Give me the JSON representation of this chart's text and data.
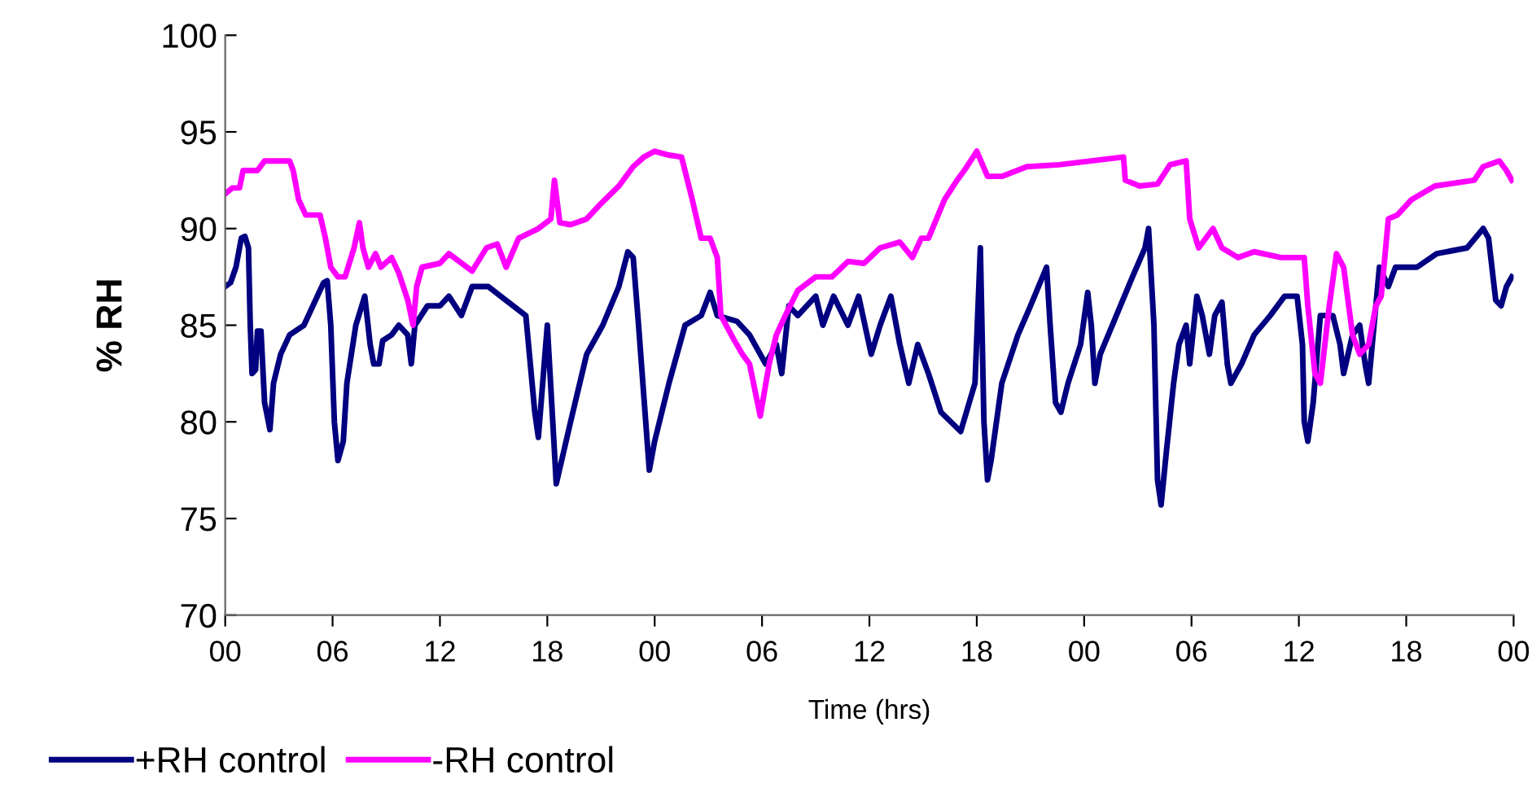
{
  "chart_data": {
    "type": "line",
    "xlabel": "Time (hrs)",
    "ylabel": "% RH",
    "xlim": [
      0,
      72
    ],
    "ylim": [
      70,
      100
    ],
    "xticks": [
      {
        "value": 0,
        "label": "00"
      },
      {
        "value": 6,
        "label": "06"
      },
      {
        "value": 12,
        "label": "12"
      },
      {
        "value": 18,
        "label": "18"
      },
      {
        "value": 24,
        "label": "00"
      },
      {
        "value": 30,
        "label": "06"
      },
      {
        "value": 36,
        "label": "12"
      },
      {
        "value": 42,
        "label": "18"
      },
      {
        "value": 48,
        "label": "00"
      },
      {
        "value": 54,
        "label": "06"
      },
      {
        "value": 60,
        "label": "12"
      },
      {
        "value": 66,
        "label": "18"
      },
      {
        "value": 72,
        "label": "00"
      }
    ],
    "yticks": [
      70,
      75,
      80,
      85,
      90,
      95,
      100
    ],
    "grid": false,
    "legend": "bottom",
    "marker": "none",
    "line_style": "solid",
    "series": [
      {
        "name": "+RH control",
        "color": "#000080",
        "x": [
          0,
          0.3,
          0.6,
          0.9,
          1.1,
          1.3,
          1.4,
          1.5,
          1.7,
          1.8,
          2.0,
          2.2,
          2.5,
          2.7,
          3.1,
          3.6,
          4.4,
          4.9,
          5.5,
          5.7,
          5.9,
          6.1,
          6.3,
          6.6,
          6.8,
          7.3,
          7.8,
          8.1,
          8.3,
          8.6,
          8.8,
          9.3,
          9.7,
          10.2,
          10.4,
          10.6,
          11.3,
          12,
          12.5,
          13.2,
          13.8,
          14.7,
          15.4,
          16.8,
          17.3,
          17.5,
          18.0,
          18.5,
          19.3,
          20.2,
          21.1,
          22,
          22.5,
          22.8,
          23.1,
          23.5,
          23.7,
          24.0,
          24.8,
          25.7,
          26.6,
          27.1,
          27.5,
          28.6,
          29.3,
          30.2,
          30.8,
          31.1,
          31.5,
          32,
          33,
          33.4,
          34,
          34.8,
          35.4,
          36.1,
          36.6,
          37.2,
          37.7,
          38.2,
          38.7,
          39.3,
          40.0,
          41.1,
          41.9,
          42.2,
          42.4,
          42.6,
          42.8,
          43.4,
          44.3,
          45.0,
          45.9,
          46.1,
          46.4,
          46.7,
          47.1,
          47.8,
          48.2,
          48.4,
          48.6,
          48.9,
          49.8,
          50.7,
          51.4,
          51.6,
          51.9,
          52.1,
          52.3,
          52.6,
          53,
          53.3,
          53.7,
          53.9,
          54.3,
          54.6,
          55,
          55.3,
          55.7,
          56,
          56.2,
          56.8,
          57.5,
          58.4,
          59.2,
          59.9,
          60.2,
          60.3,
          60.5,
          60.8,
          61.2,
          61.9,
          62.3,
          62.5,
          63,
          63.4,
          63.7,
          63.9,
          64.2,
          64.5,
          65,
          65.4,
          66.6,
          67.7,
          69.4,
          70.3,
          70.6,
          71,
          71.3,
          71.6,
          71.9
        ],
        "values": [
          87,
          87.2,
          88,
          89.5,
          89.6,
          89,
          85,
          82.5,
          82.7,
          84.7,
          84.7,
          81,
          79.6,
          82,
          83.5,
          84.5,
          85,
          86,
          87.2,
          87.3,
          85,
          80,
          78,
          79,
          82,
          85,
          86.5,
          84,
          83,
          83,
          84.2,
          84.5,
          85,
          84.5,
          83,
          85,
          86,
          86,
          86.5,
          85.5,
          87,
          87,
          86.5,
          85.5,
          80.5,
          79.2,
          85,
          76.8,
          80,
          83.5,
          85,
          87,
          88.8,
          88.5,
          85,
          80,
          77.5,
          79,
          82,
          85,
          85.5,
          86.7,
          85.5,
          85.2,
          84.5,
          83,
          84,
          82.5,
          86,
          85.5,
          86.5,
          85,
          86.5,
          85,
          86.5,
          83.5,
          85,
          86.5,
          84,
          82,
          84,
          82.5,
          80.5,
          79.5,
          82,
          89,
          80,
          77,
          78,
          82,
          84.5,
          86,
          88,
          85,
          81,
          80.5,
          82,
          84,
          86.7,
          85,
          82,
          83.5,
          85.5,
          87.5,
          89,
          90,
          85,
          77,
          75.7,
          78.5,
          82,
          84,
          85,
          83,
          86.5,
          85.5,
          83.5,
          85.5,
          86.2,
          83,
          82,
          83,
          84.5,
          85.5,
          86.5,
          86.5,
          84,
          80,
          79,
          81,
          85.5,
          85.5,
          84,
          82.5,
          84.5,
          85,
          83,
          82,
          85,
          88,
          87,
          88,
          88,
          88.7,
          89,
          90,
          89.5,
          86.3,
          86,
          87,
          87.5
        ]
      },
      {
        "name": "-RH control",
        "color": "#ff00ff",
        "x": [
          0,
          0.4,
          0.8,
          1.0,
          1.8,
          2.2,
          3.6,
          3.8,
          4.1,
          4.5,
          5.3,
          5.6,
          5.9,
          6.3,
          6.7,
          7.2,
          7.5,
          7.7,
          8.0,
          8.4,
          8.7,
          9.3,
          9.7,
          10.2,
          10.5,
          10.7,
          11,
          12,
          12.5,
          13.8,
          14.6,
          15.2,
          15.7,
          16.4,
          17.5,
          18.2,
          18.4,
          18.7,
          19.3,
          20.2,
          20.9,
          22,
          22.8,
          23.4,
          24,
          24.8,
          25.5,
          26.1,
          26.6,
          27.1,
          27.5,
          27.7,
          28.4,
          28.9,
          29.3,
          29.9,
          30.4,
          30.8,
          31.3,
          32,
          33,
          33.9,
          34.8,
          35.7,
          36.6,
          37.7,
          38.4,
          38.9,
          39.3,
          40.2,
          40.9,
          41.3,
          42,
          42.6,
          43.4,
          44.8,
          46.6,
          48.4,
          50.2,
          50.3,
          51.1,
          52.1,
          52.8,
          53.7,
          53.9,
          54.4,
          55.2,
          55.7,
          56.6,
          57.5,
          59,
          60.3,
          60.5,
          60.9,
          61.2,
          61.7,
          62.1,
          62.5,
          63,
          63.4,
          63.9,
          64.3,
          64.6,
          65,
          65.5,
          66.3,
          67.6,
          69.8,
          70.3,
          71.2,
          71.6,
          71.9
        ],
        "values": [
          91.8,
          92.1,
          92.1,
          93,
          93,
          93.5,
          93.5,
          93,
          91.5,
          90.7,
          90.7,
          89.5,
          88,
          87.5,
          87.5,
          89,
          90.3,
          89,
          88,
          88.7,
          88,
          88.5,
          87.7,
          86.3,
          85,
          87,
          88,
          88.2,
          88.7,
          87.8,
          89,
          89.2,
          88,
          89.5,
          90,
          90.5,
          92.5,
          90.3,
          90.2,
          90.5,
          91.2,
          92.2,
          93.2,
          93.7,
          94,
          93.8,
          93.7,
          91.5,
          89.5,
          89.5,
          88.5,
          85.5,
          84.3,
          83.5,
          83,
          80.3,
          83,
          84.5,
          85.5,
          86.8,
          87.5,
          87.5,
          88.3,
          88.2,
          89,
          89.3,
          88.5,
          89.5,
          89.5,
          91.5,
          92.5,
          93,
          94,
          92.7,
          92.7,
          93.2,
          93.3,
          93.5,
          93.7,
          92.5,
          92.2,
          92.3,
          93.3,
          93.5,
          90.5,
          89,
          90,
          89,
          88.5,
          88.8,
          88.5,
          88.5,
          86,
          82.5,
          82,
          86,
          88.7,
          88,
          84.5,
          83.5,
          84,
          86,
          86.5,
          90.5,
          90.7,
          91.5,
          92.2,
          92.5,
          93.2,
          93.5,
          93,
          92.5
        ]
      }
    ]
  }
}
